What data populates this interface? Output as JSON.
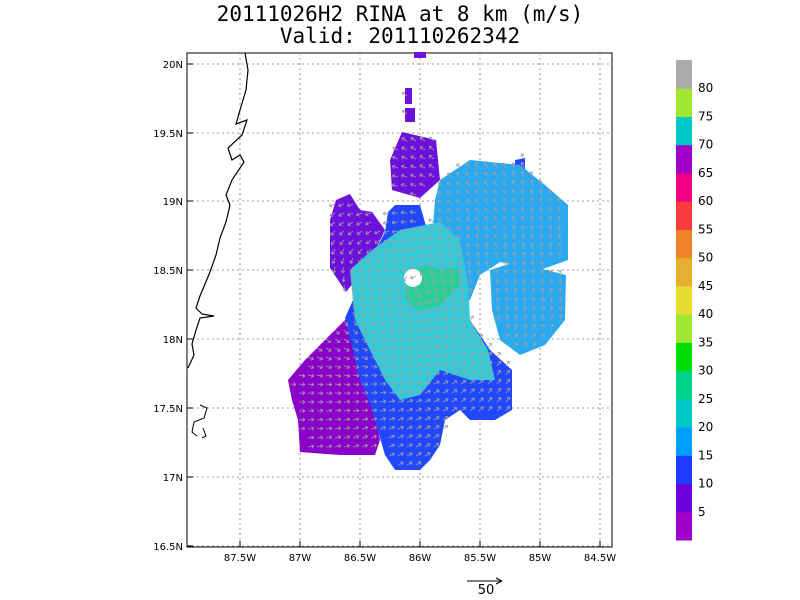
{
  "title_line1": "20111026H2 RINA at 8 km (m/s)",
  "title_line2": "Valid: 201110262342",
  "axes": {
    "lat_ticks": [
      "20N",
      "19.5N",
      "19N",
      "18.5N",
      "18N",
      "17.5N",
      "17N",
      "16.5N"
    ],
    "lon_ticks": [
      "87.5W",
      "87W",
      "86.5W",
      "86W",
      "85.5W",
      "85W",
      "84.5W"
    ]
  },
  "colorbar": {
    "labels": [
      "5",
      "10",
      "15",
      "20",
      "25",
      "30",
      "35",
      "40",
      "45",
      "50",
      "55",
      "60",
      "65",
      "70",
      "75",
      "80"
    ],
    "colors": [
      "#a000c8",
      "#6e00dc",
      "#1e3cff",
      "#00a0ff",
      "#00c8c8",
      "#00d28c",
      "#00dc00",
      "#a0e632",
      "#e6dc32",
      "#e6af2d",
      "#f08228",
      "#fa3c3c",
      "#f00082",
      "#a000c8",
      "#00c8c8",
      "#a0e632",
      "#aaaaaa"
    ]
  },
  "reference_vector": {
    "value": "50",
    "label": "50"
  },
  "storm_center": {
    "lat": 18.3,
    "lon": -86.0
  },
  "colors": {
    "arrow": "#a0a0a0",
    "grid": "#999999",
    "coast": "#000000"
  }
}
